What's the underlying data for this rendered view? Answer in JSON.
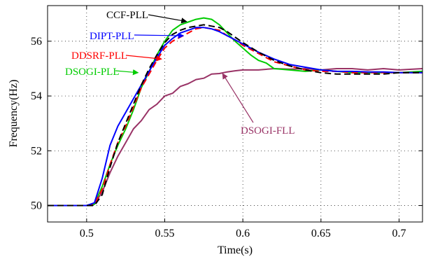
{
  "chart_data": {
    "type": "line",
    "xlabel": "Time(s)",
    "ylabel": "Frequency(Hz)",
    "xlim": [
      0.475,
      0.715
    ],
    "ylim": [
      49.4,
      57.3
    ],
    "xticks": [
      0.5,
      0.55,
      0.6,
      0.65,
      0.7
    ],
    "xtick_labels": [
      "0.5",
      "0.55",
      "0.6",
      "0.65",
      "0.7"
    ],
    "yticks": [
      50,
      52,
      54,
      56
    ],
    "ytick_labels": [
      "50",
      "52",
      "54",
      "56"
    ],
    "grid": true,
    "series": [
      {
        "name": "DSOGI-FLL",
        "color": "#993366",
        "dash": "solid",
        "points": [
          [
            0.475,
            50.0
          ],
          [
            0.5,
            50.0
          ],
          [
            0.505,
            50.05
          ],
          [
            0.51,
            50.5
          ],
          [
            0.515,
            51.2
          ],
          [
            0.52,
            51.8
          ],
          [
            0.525,
            52.3
          ],
          [
            0.53,
            52.8
          ],
          [
            0.535,
            53.1
          ],
          [
            0.54,
            53.5
          ],
          [
            0.545,
            53.7
          ],
          [
            0.55,
            54.0
          ],
          [
            0.555,
            54.1
          ],
          [
            0.56,
            54.35
          ],
          [
            0.565,
            54.45
          ],
          [
            0.57,
            54.6
          ],
          [
            0.575,
            54.65
          ],
          [
            0.58,
            54.8
          ],
          [
            0.585,
            54.82
          ],
          [
            0.59,
            54.88
          ],
          [
            0.595,
            54.92
          ],
          [
            0.6,
            54.95
          ],
          [
            0.61,
            54.95
          ],
          [
            0.62,
            55.0
          ],
          [
            0.63,
            54.98
          ],
          [
            0.64,
            55.0
          ],
          [
            0.65,
            54.95
          ],
          [
            0.66,
            55.0
          ],
          [
            0.67,
            55.0
          ],
          [
            0.68,
            54.95
          ],
          [
            0.69,
            55.0
          ],
          [
            0.7,
            54.95
          ],
          [
            0.715,
            55.0
          ]
        ]
      },
      {
        "name": "DSOGI-PLL",
        "color": "#00cc00",
        "dash": "solid",
        "points": [
          [
            0.475,
            50.0
          ],
          [
            0.5,
            50.0
          ],
          [
            0.505,
            50.05
          ],
          [
            0.51,
            50.7
          ],
          [
            0.515,
            51.5
          ],
          [
            0.52,
            52.2
          ],
          [
            0.525,
            52.8
          ],
          [
            0.53,
            53.5
          ],
          [
            0.535,
            54.3
          ],
          [
            0.54,
            54.9
          ],
          [
            0.545,
            55.5
          ],
          [
            0.55,
            56.0
          ],
          [
            0.555,
            56.4
          ],
          [
            0.56,
            56.6
          ],
          [
            0.565,
            56.7
          ],
          [
            0.57,
            56.8
          ],
          [
            0.575,
            56.85
          ],
          [
            0.58,
            56.8
          ],
          [
            0.585,
            56.6
          ],
          [
            0.59,
            56.3
          ],
          [
            0.595,
            56.0
          ],
          [
            0.6,
            55.75
          ],
          [
            0.605,
            55.5
          ],
          [
            0.61,
            55.3
          ],
          [
            0.615,
            55.2
          ],
          [
            0.62,
            55.0
          ],
          [
            0.63,
            54.95
          ],
          [
            0.64,
            54.9
          ],
          [
            0.65,
            54.95
          ],
          [
            0.66,
            54.9
          ],
          [
            0.67,
            54.85
          ],
          [
            0.68,
            54.85
          ],
          [
            0.69,
            54.85
          ],
          [
            0.7,
            54.85
          ],
          [
            0.715,
            54.9
          ]
        ]
      },
      {
        "name": "DDSRF-PLL",
        "color": "#ff0000",
        "dash": "dashed",
        "points": [
          [
            0.475,
            50.0
          ],
          [
            0.5,
            50.0
          ],
          [
            0.505,
            50.05
          ],
          [
            0.51,
            50.6
          ],
          [
            0.515,
            51.5
          ],
          [
            0.52,
            52.3
          ],
          [
            0.525,
            52.9
          ],
          [
            0.53,
            53.6
          ],
          [
            0.535,
            54.3
          ],
          [
            0.54,
            54.8
          ],
          [
            0.545,
            55.3
          ],
          [
            0.55,
            55.75
          ],
          [
            0.555,
            56.0
          ],
          [
            0.56,
            56.15
          ],
          [
            0.565,
            56.3
          ],
          [
            0.57,
            56.45
          ],
          [
            0.575,
            56.5
          ],
          [
            0.58,
            56.45
          ],
          [
            0.585,
            56.4
          ],
          [
            0.59,
            56.2
          ],
          [
            0.595,
            56.05
          ],
          [
            0.6,
            55.85
          ],
          [
            0.61,
            55.55
          ],
          [
            0.62,
            55.25
          ],
          [
            0.63,
            55.1
          ],
          [
            0.64,
            54.95
          ],
          [
            0.65,
            54.9
          ],
          [
            0.66,
            54.9
          ],
          [
            0.67,
            54.85
          ],
          [
            0.68,
            54.85
          ],
          [
            0.69,
            54.85
          ],
          [
            0.7,
            54.85
          ],
          [
            0.715,
            54.85
          ]
        ]
      },
      {
        "name": "DIPT-PLL",
        "color": "#0000ff",
        "dash": "solid",
        "points": [
          [
            0.475,
            50.0
          ],
          [
            0.5,
            50.0
          ],
          [
            0.505,
            50.1
          ],
          [
            0.51,
            51.0
          ],
          [
            0.515,
            52.2
          ],
          [
            0.52,
            52.9
          ],
          [
            0.525,
            53.4
          ],
          [
            0.53,
            53.9
          ],
          [
            0.535,
            54.4
          ],
          [
            0.54,
            54.9
          ],
          [
            0.545,
            55.4
          ],
          [
            0.55,
            55.85
          ],
          [
            0.555,
            56.1
          ],
          [
            0.56,
            56.3
          ],
          [
            0.565,
            56.4
          ],
          [
            0.57,
            56.5
          ],
          [
            0.575,
            56.5
          ],
          [
            0.58,
            56.45
          ],
          [
            0.585,
            56.35
          ],
          [
            0.59,
            56.2
          ],
          [
            0.595,
            56.05
          ],
          [
            0.6,
            55.9
          ],
          [
            0.61,
            55.6
          ],
          [
            0.62,
            55.35
          ],
          [
            0.63,
            55.15
          ],
          [
            0.64,
            55.05
          ],
          [
            0.65,
            54.95
          ],
          [
            0.66,
            54.9
          ],
          [
            0.67,
            54.9
          ],
          [
            0.68,
            54.88
          ],
          [
            0.69,
            54.88
          ],
          [
            0.7,
            54.85
          ],
          [
            0.715,
            54.85
          ]
        ]
      },
      {
        "name": "CCF-PLL",
        "color": "#000000",
        "dash": "dashed",
        "points": [
          [
            0.475,
            50.0
          ],
          [
            0.5,
            50.0
          ],
          [
            0.505,
            50.0
          ],
          [
            0.51,
            50.4
          ],
          [
            0.515,
            51.4
          ],
          [
            0.52,
            52.3
          ],
          [
            0.525,
            53.0
          ],
          [
            0.53,
            53.7
          ],
          [
            0.535,
            54.4
          ],
          [
            0.54,
            55.0
          ],
          [
            0.545,
            55.5
          ],
          [
            0.55,
            55.95
          ],
          [
            0.555,
            56.25
          ],
          [
            0.56,
            56.4
          ],
          [
            0.565,
            56.5
          ],
          [
            0.57,
            56.55
          ],
          [
            0.575,
            56.6
          ],
          [
            0.58,
            56.55
          ],
          [
            0.585,
            56.5
          ],
          [
            0.59,
            56.35
          ],
          [
            0.595,
            56.15
          ],
          [
            0.6,
            55.95
          ],
          [
            0.61,
            55.6
          ],
          [
            0.62,
            55.3
          ],
          [
            0.63,
            55.1
          ],
          [
            0.64,
            54.95
          ],
          [
            0.65,
            54.85
          ],
          [
            0.66,
            54.8
          ],
          [
            0.67,
            54.8
          ],
          [
            0.68,
            54.8
          ],
          [
            0.69,
            54.8
          ],
          [
            0.7,
            54.85
          ],
          [
            0.715,
            54.85
          ]
        ]
      }
    ],
    "annotations": [
      {
        "text": "CCF-PLL",
        "color": "#000000",
        "arrow_to": [
          0.564,
          56.72
        ]
      },
      {
        "text": "DIPT-PLL",
        "color": "#0000ff",
        "arrow_to": [
          0.562,
          56.2
        ]
      },
      {
        "text": "DDSRF-PLL",
        "color": "#ff0000",
        "arrow_to": [
          0.548,
          55.35
        ]
      },
      {
        "text": "DSOGI-PLL",
        "color": "#00cc00",
        "arrow_to": [
          0.533,
          54.85
        ]
      },
      {
        "text": "DSOGI-FLL",
        "color": "#993366",
        "arrow_to": [
          0.587,
          54.82
        ]
      }
    ]
  }
}
